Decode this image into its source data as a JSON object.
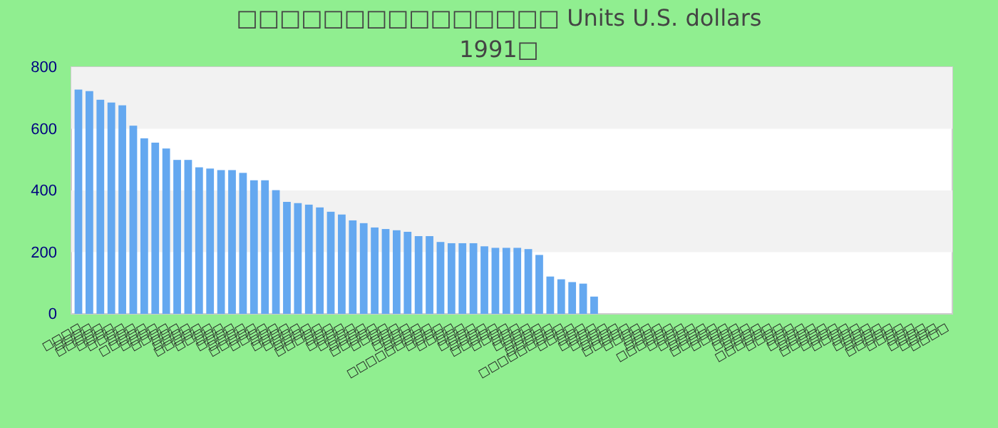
{
  "chart_data": {
    "type": "bar",
    "title": "□□□□□□□□□□□□□□□ Units U.S. dollars",
    "subtitle": "1991□",
    "categories": [
      "□□□□",
      "□□□□",
      "□□□□□",
      "□□□□",
      "□□□□",
      "□□□",
      "□□□□□",
      "□□□□",
      "□□□□",
      "□□□",
      "□□□□",
      "□□□□□",
      "□□□□",
      "□□□",
      "□□□□",
      "□□□□",
      "□□□□□",
      "□□□□",
      "□□□",
      "□□□□",
      "□□□□",
      "□□□□",
      "□□□□□",
      "□□□",
      "□□□□",
      "□□□□",
      "□□□□",
      "□□□□□",
      "□□□□",
      "□□□",
      "□□□□",
      "□□□□",
      "□□□□□□□□□",
      "□□□□",
      "□□□□",
      "□□□",
      "□□□□",
      "□□□□",
      "□□□□□",
      "□□□□",
      "□□□",
      "□□□□",
      "□□□□",
      "□□□□□",
      "□□□□□□□□□",
      "□□□□",
      "□□□",
      "□□□□",
      "□□□□",
      "□□□□",
      "□□□□□",
      "□□□□",
      "□□□",
      "□□□□",
      "□□□□□□",
      "□□□□",
      "□□□□",
      "□□□□",
      "□□□□□",
      "□□□□",
      "□□□",
      "□□□□",
      "□□□□",
      "□□□□□□",
      "□□□□",
      "□□□",
      "□□□□",
      "□□□□",
      "□□□□□",
      "□□□□",
      "□□□□",
      "□□□",
      "□□□□",
      "□□□□",
      "□□□□□",
      "□□□□",
      "□□□",
      "□□□□",
      "□□□□",
      "□□□□"
    ],
    "values": [
      727,
      722,
      694,
      685,
      676,
      610,
      569,
      555,
      536,
      499,
      499,
      475,
      471,
      466,
      466,
      457,
      433,
      433,
      401,
      363,
      359,
      354,
      345,
      331,
      322,
      303,
      294,
      280,
      275,
      271,
      266,
      252,
      252,
      233,
      229,
      229,
      229,
      219,
      214,
      214,
      214,
      210,
      191,
      121,
      112,
      103,
      98,
      56,
      null,
      null,
      null,
      null,
      null,
      null,
      null,
      null,
      null,
      null,
      null,
      null,
      null,
      null,
      null,
      null,
      null,
      null,
      null,
      null,
      null,
      null,
      null,
      null,
      null,
      null,
      null,
      null,
      null,
      null,
      null,
      null
    ],
    "color": "#64a8f0",
    "ylim": [
      0,
      800
    ],
    "yticks": [
      0,
      200,
      400,
      600,
      800
    ]
  }
}
